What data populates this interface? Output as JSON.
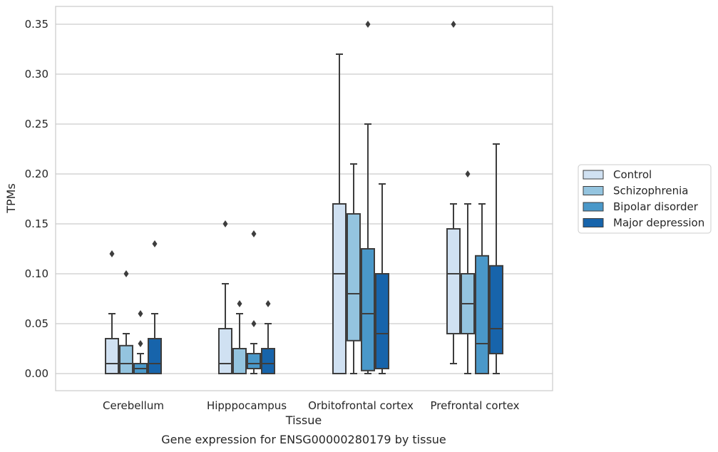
{
  "chart_data": {
    "type": "box",
    "title": "",
    "caption": "Gene expression for ENSG00000280179 by tissue",
    "xlabel": "Tissue",
    "ylabel": "TPMs",
    "ylim": [
      -0.017,
      0.368
    ],
    "yticks": [
      "0.00",
      "0.05",
      "0.10",
      "0.15",
      "0.20",
      "0.25",
      "0.30",
      "0.35"
    ],
    "ytick_values": [
      0,
      0.05,
      0.1,
      0.15,
      0.2,
      0.25,
      0.3,
      0.35
    ],
    "grid": "horizontal",
    "legend_position": "right",
    "categories": [
      "Cerebellum",
      "Hipppocampus",
      "Orbitofrontal cortex",
      "Prefrontal cortex"
    ],
    "series": [
      {
        "name": "Control",
        "color": "#d0e1f2",
        "boxes": [
          {
            "whislo": 0,
            "q1": 0,
            "med": 0.01,
            "q3": 0.035,
            "whishi": 0.06,
            "fliers": [
              0.12
            ]
          },
          {
            "whislo": 0,
            "q1": 0,
            "med": 0.01,
            "q3": 0.045,
            "whishi": 0.09,
            "fliers": [
              0.15
            ]
          },
          {
            "whislo": 0,
            "q1": 0,
            "med": 0.1,
            "q3": 0.17,
            "whishi": 0.32,
            "fliers": []
          },
          {
            "whislo": 0.01,
            "q1": 0.04,
            "med": 0.1,
            "q3": 0.145,
            "whishi": 0.17,
            "fliers": [
              0.35
            ]
          }
        ]
      },
      {
        "name": "Schizophrenia",
        "color": "#94c4df",
        "boxes": [
          {
            "whislo": 0,
            "q1": 0,
            "med": 0.01,
            "q3": 0.028,
            "whishi": 0.04,
            "fliers": [
              0.1
            ]
          },
          {
            "whislo": 0,
            "q1": 0,
            "med": 0.0,
            "q3": 0.025,
            "whishi": 0.06,
            "fliers": [
              0.07
            ]
          },
          {
            "whislo": 0,
            "q1": 0.033,
            "med": 0.08,
            "q3": 0.16,
            "whishi": 0.21,
            "fliers": []
          },
          {
            "whislo": 0,
            "q1": 0.04,
            "med": 0.07,
            "q3": 0.1,
            "whishi": 0.17,
            "fliers": [
              0.2
            ]
          }
        ]
      },
      {
        "name": "Bipolar disorder",
        "color": "#4a98c9",
        "boxes": [
          {
            "whislo": 0,
            "q1": 0,
            "med": 0.005,
            "q3": 0.01,
            "whishi": 0.02,
            "fliers": [
              0.03,
              0.06
            ]
          },
          {
            "whislo": 0,
            "q1": 0.005,
            "med": 0.01,
            "q3": 0.02,
            "whishi": 0.03,
            "fliers": [
              0.05,
              0.14
            ]
          },
          {
            "whislo": 0,
            "q1": 0.003,
            "med": 0.06,
            "q3": 0.125,
            "whishi": 0.25,
            "fliers": [
              0.35
            ]
          },
          {
            "whislo": 0,
            "q1": 0,
            "med": 0.03,
            "q3": 0.118,
            "whishi": 0.17,
            "fliers": []
          }
        ]
      },
      {
        "name": "Major depression",
        "color": "#1764ab",
        "boxes": [
          {
            "whislo": 0,
            "q1": 0,
            "med": 0.01,
            "q3": 0.035,
            "whishi": 0.06,
            "fliers": [
              0.13
            ]
          },
          {
            "whislo": 0,
            "q1": 0,
            "med": 0.01,
            "q3": 0.025,
            "whishi": 0.05,
            "fliers": [
              0.07
            ]
          },
          {
            "whislo": 0,
            "q1": 0.005,
            "med": 0.04,
            "q3": 0.1,
            "whishi": 0.19,
            "fliers": []
          },
          {
            "whislo": 0,
            "q1": 0.02,
            "med": 0.045,
            "q3": 0.108,
            "whishi": 0.23,
            "fliers": []
          }
        ]
      }
    ]
  }
}
